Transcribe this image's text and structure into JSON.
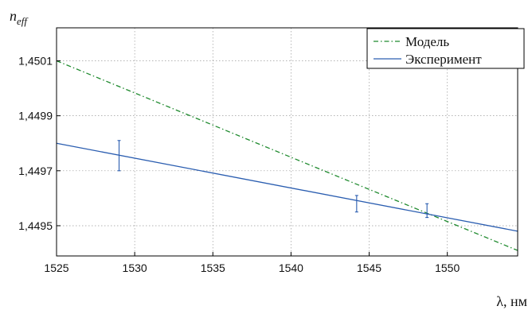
{
  "chart_data": {
    "type": "line",
    "ylabel": "n_eff",
    "ylabel_base": "n",
    "ylabel_sub": "eff",
    "xlabel": "λ, нм",
    "xlim": [
      1525,
      1554.5
    ],
    "ylim": [
      1.44939,
      1.45022
    ],
    "grid": true,
    "legend_position": "top-right",
    "x_ticks": [
      1525,
      1530,
      1535,
      1540,
      1545,
      1550
    ],
    "x_tick_labels": [
      "1525",
      "1530",
      "1535",
      "1540",
      "1545",
      "1550"
    ],
    "y_ticks": [
      1.4495,
      1.4497,
      1.4499,
      1.4501
    ],
    "y_tick_labels": [
      "1,4495",
      "1,4497",
      "1,4499",
      "1,4501"
    ],
    "series": [
      {
        "name": "Модель",
        "style": "dash-dot",
        "color": "#1f8a2e",
        "x": [
          1525,
          1554.5
        ],
        "y": [
          1.4501,
          1.44941
        ]
      },
      {
        "name": "Эксперимент",
        "style": "solid",
        "color": "#2a5db0",
        "x": [
          1525,
          1554.5
        ],
        "y": [
          1.4498,
          1.44948
        ]
      }
    ],
    "error_bars": {
      "color": "#2a5db0",
      "points": [
        {
          "x": 1529.0,
          "y": 1.44976,
          "low": 1.4497,
          "high": 1.44981
        },
        {
          "x": 1544.2,
          "y": 1.44958,
          "low": 1.44955,
          "high": 1.44961
        },
        {
          "x": 1548.7,
          "y": 1.44956,
          "low": 1.44953,
          "high": 1.44958
        }
      ]
    }
  }
}
